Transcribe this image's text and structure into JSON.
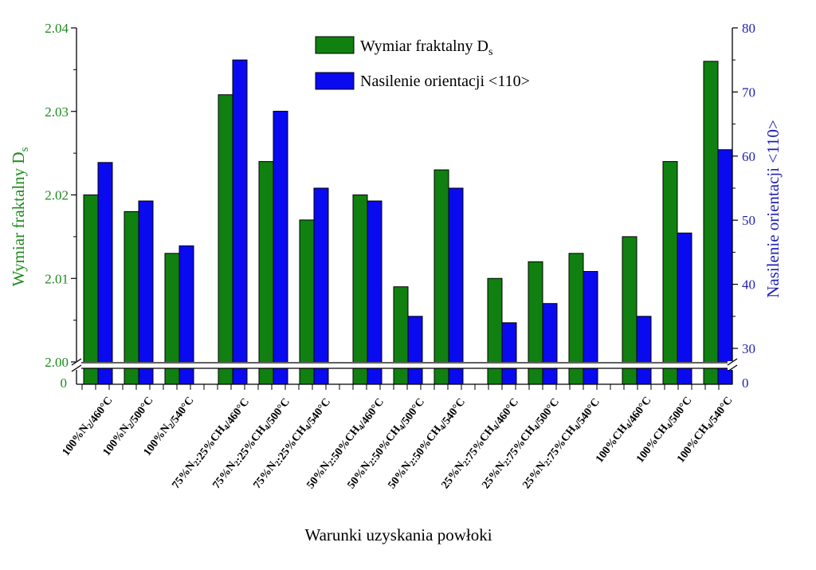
{
  "chart_data": {
    "type": "bar",
    "xlabel": "Warunki uzyskania powłoki",
    "ylabel_left_main": "Wymiar fraktalny D",
    "ylabel_left_sub": "s",
    "ylabel_right": "Nasilenie orientacji <110>",
    "ylim_left": [
      2.0,
      2.04
    ],
    "ylim_right": [
      30,
      80
    ],
    "yticks_left": [
      "2.00",
      "2.01",
      "2.02",
      "2.03",
      "2.04"
    ],
    "yticks_right": [
      "30",
      "40",
      "50",
      "60",
      "70",
      "80"
    ],
    "break_zero_label": "0",
    "axis_break": true,
    "legend_position": "top-center",
    "groups": [
      {
        "categories": [
          {
            "pre": "100%N",
            "sub": "2",
            "post": "/460°C"
          },
          {
            "pre": "100%N",
            "sub": "2",
            "post": "/500°C"
          },
          {
            "pre": "100%N",
            "sub": "2",
            "post": "/540°C"
          }
        ]
      },
      {
        "categories": [
          {
            "pre": "75%N",
            "sub": "2",
            "mid": ":25%CH",
            "sub2": "4",
            "post": "/460°C"
          },
          {
            "pre": "75%N",
            "sub": "2",
            "mid": ":25%CH",
            "sub2": "4",
            "post": "/500°C"
          },
          {
            "pre": "75%N",
            "sub": "2",
            "mid": ":25%CH",
            "sub2": "4",
            "post": "/540°C"
          }
        ]
      },
      {
        "categories": [
          {
            "pre": "50%N",
            "sub": "2",
            "mid": ":50%CH",
            "sub2": "4",
            "post": "/460°C"
          },
          {
            "pre": "50%N",
            "sub": "2",
            "mid": ":50%CH",
            "sub2": "4",
            "post": "/500°C"
          },
          {
            "pre": "50%N",
            "sub": "2",
            "mid": ":50%CH",
            "sub2": "4",
            "post": "/540°C"
          }
        ]
      },
      {
        "categories": [
          {
            "pre": "25%N",
            "sub": "2",
            "mid": ":75%CH",
            "sub2": "4",
            "post": "/460°C"
          },
          {
            "pre": "25%N",
            "sub": "2",
            "mid": ":75%CH",
            "sub2": "4",
            "post": "/500°C"
          },
          {
            "pre": "25%N",
            "sub": "2",
            "mid": ":75%CH",
            "sub2": "4",
            "post": "/540°C"
          }
        ]
      },
      {
        "categories": [
          {
            "pre": "100%CH",
            "sub": "4",
            "post": "/460°C"
          },
          {
            "pre": "100%CH",
            "sub": "4",
            "post": "/500°C"
          },
          {
            "pre": "100%CH",
            "sub": "4",
            "post": "/540°C"
          }
        ]
      }
    ],
    "series": [
      {
        "name_main": "Wymiar fraktalny D",
        "name_sub": "s",
        "axis": "left",
        "color": "#108010",
        "values": [
          2.02,
          2.018,
          2.013,
          2.032,
          2.024,
          2.017,
          2.02,
          2.009,
          2.023,
          2.01,
          2.012,
          2.013,
          2.015,
          2.024,
          2.036
        ]
      },
      {
        "name_main": "Nasilenie orientacji <110>",
        "axis": "right",
        "color": "#0a0af0",
        "values": [
          59,
          53,
          46,
          75,
          67,
          55,
          53,
          35,
          55,
          34,
          37,
          42,
          35,
          48,
          61
        ]
      }
    ]
  }
}
